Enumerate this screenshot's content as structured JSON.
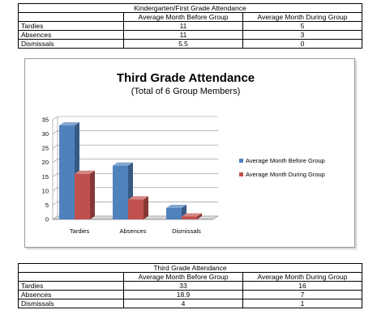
{
  "table_kg": {
    "title": "Kindergarten/First Grade Attendance",
    "headers": [
      "",
      "Average Month Before Group",
      "Average Month During Group"
    ],
    "rows": [
      [
        "Tardies",
        "11",
        "5"
      ],
      [
        "Absences",
        "11",
        "3"
      ],
      [
        "Dismissals",
        "5.5",
        "0"
      ]
    ]
  },
  "table_third": {
    "title": "Third Grade Attendance",
    "headers": [
      "",
      "Average Month Before Group",
      "Average Month During Group"
    ],
    "rows": [
      [
        "Tardies",
        "33",
        "16"
      ],
      [
        "Absences",
        "18.9",
        "7"
      ],
      [
        "Dismissals",
        "4",
        "1"
      ]
    ]
  },
  "chart_data": {
    "type": "bar",
    "title": "Third Grade Attendance",
    "subtitle": "(Total of 6 Group Members)",
    "categories": [
      "Tardies",
      "Absences",
      "Dismissals"
    ],
    "series": [
      {
        "name": "Average Month Before Group",
        "values": [
          33,
          18.9,
          4
        ],
        "color": "#4f81bd"
      },
      {
        "name": "Average Month During Group",
        "values": [
          16,
          7,
          1
        ],
        "color": "#c0504d"
      }
    ],
    "ylim": [
      0,
      35
    ],
    "yticks": [
      "0",
      "5",
      "10",
      "15",
      "20",
      "25",
      "30",
      "35"
    ],
    "grid": true,
    "legend": "right",
    "xlabel": "",
    "ylabel": ""
  }
}
